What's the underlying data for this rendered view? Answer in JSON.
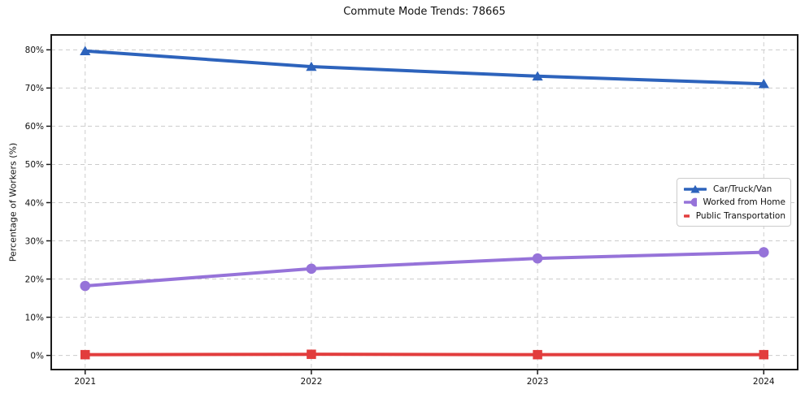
{
  "title": "Commute Mode Trends: 78665",
  "chart_data": {
    "type": "line",
    "title": "Commute Mode Trends: 78665",
    "xlabel": "",
    "ylabel": "Percentage of Workers (%)",
    "categories": [
      "2021",
      "2022",
      "2023",
      "2024"
    ],
    "series": [
      {
        "name": "Car/Truck/Van",
        "color": "#2d63bc",
        "marker": "triangle",
        "values": [
          79.7,
          75.6,
          73.1,
          71.1
        ]
      },
      {
        "name": "Worked from Home",
        "color": "#9673d9",
        "marker": "circle",
        "values": [
          18.2,
          22.7,
          25.4,
          27.0
        ]
      },
      {
        "name": "Public Transportation",
        "color": "#e23d3d",
        "marker": "square",
        "values": [
          0.2,
          0.3,
          0.2,
          0.2
        ]
      }
    ],
    "yticks": [
      0,
      10,
      20,
      30,
      40,
      50,
      60,
      70,
      80
    ],
    "ytick_labels": [
      "0%",
      "10%",
      "20%",
      "30%",
      "40%",
      "50%",
      "60%",
      "70%",
      "80%"
    ],
    "ylim": [
      -3.7,
      83.9
    ],
    "grid": true,
    "grid_color": "#cccccc",
    "axis_color": "#1a1a1a",
    "text_color": "#111111",
    "background": "#ffffff",
    "legend_position": "right-center"
  }
}
